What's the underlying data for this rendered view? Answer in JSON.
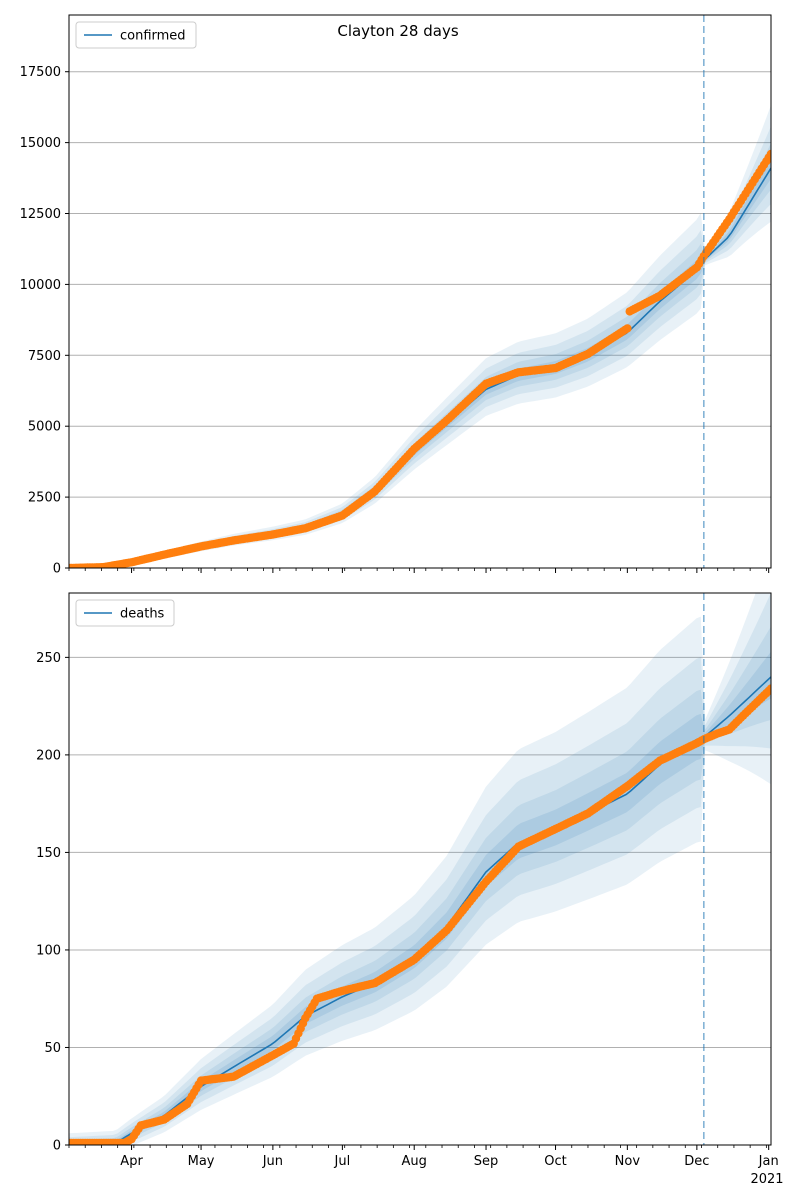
{
  "figure": {
    "title": "Clayton 28 days"
  },
  "colors": {
    "line": "#1f77b4",
    "points": "#ff7f0e",
    "band": "#1f77b4",
    "grid": "#b0b0b0",
    "cutoff": "#1f77b4"
  },
  "x_axis": {
    "ticks": [
      "Apr",
      "May",
      "Jun",
      "Jul",
      "Aug",
      "Sep",
      "Oct",
      "Nov",
      "Dec",
      "Jan"
    ],
    "year_label": "2021"
  },
  "chart_data": [
    {
      "type": "line",
      "x_domain": [
        "2020-03-05",
        "2021-01-02"
      ],
      "forecast_start": "2020-12-04",
      "legend": "confirmed",
      "legend_position": "upper left",
      "ylim": [
        0,
        19500
      ],
      "yticks": [
        "0",
        "2500",
        "5000",
        "7500",
        "10000",
        "12500",
        "15000",
        "17500"
      ],
      "ytick_values": [
        0,
        2500,
        5000,
        7500,
        10000,
        12500,
        15000,
        17500
      ],
      "grid": "y",
      "model_median": [
        [
          "2020-03-05",
          0
        ],
        [
          "2020-03-20",
          20
        ],
        [
          "2020-04-01",
          180
        ],
        [
          "2020-04-15",
          450
        ],
        [
          "2020-05-01",
          750
        ],
        [
          "2020-05-15",
          980
        ],
        [
          "2020-06-01",
          1200
        ],
        [
          "2020-06-15",
          1420
        ],
        [
          "2020-07-01",
          1900
        ],
        [
          "2020-07-15",
          2700
        ],
        [
          "2020-08-01",
          4100
        ],
        [
          "2020-08-15",
          5100
        ],
        [
          "2020-09-01",
          6300
        ],
        [
          "2020-09-15",
          6800
        ],
        [
          "2020-10-01",
          7050
        ],
        [
          "2020-10-15",
          7500
        ],
        [
          "2020-11-01",
          8300
        ],
        [
          "2020-11-15",
          9400
        ],
        [
          "2020-12-01",
          10500
        ],
        [
          "2020-12-04",
          10850
        ],
        [
          "2020-12-15",
          11700
        ],
        [
          "2021-01-02",
          14100
        ]
      ],
      "observed": [
        [
          "2020-03-05",
          0
        ],
        [
          "2020-03-20",
          30
        ],
        [
          "2020-04-01",
          200
        ],
        [
          "2020-04-15",
          470
        ],
        [
          "2020-05-01",
          760
        ],
        [
          "2020-05-15",
          970
        ],
        [
          "2020-06-01",
          1180
        ],
        [
          "2020-06-15",
          1400
        ],
        [
          "2020-07-01",
          1850
        ],
        [
          "2020-07-15",
          2700
        ],
        [
          "2020-08-01",
          4200
        ],
        [
          "2020-08-15",
          5200
        ],
        [
          "2020-09-01",
          6500
        ],
        [
          "2020-09-15",
          6900
        ],
        [
          "2020-10-01",
          7050
        ],
        [
          "2020-10-15",
          7550
        ],
        [
          "2020-11-01",
          8450
        ],
        [
          "2020-11-02",
          9050
        ],
        [
          "2020-11-15",
          9600
        ],
        [
          "2020-12-01",
          10600
        ],
        [
          "2020-12-04",
          11000
        ],
        [
          "2020-12-15",
          12300
        ],
        [
          "2021-01-02",
          14600
        ]
      ]
    },
    {
      "type": "line",
      "x_domain": [
        "2020-03-05",
        "2021-01-02"
      ],
      "forecast_start": "2020-12-04",
      "legend": "deaths",
      "legend_position": "upper left",
      "ylim": [
        0,
        283
      ],
      "yticks": [
        "0",
        "50",
        "100",
        "150",
        "200",
        "250"
      ],
      "ytick_values": [
        0,
        50,
        100,
        150,
        200,
        250
      ],
      "grid": "y",
      "model_median": [
        [
          "2020-03-05",
          0
        ],
        [
          "2020-03-25",
          1
        ],
        [
          "2020-04-01",
          6
        ],
        [
          "2020-04-15",
          15
        ],
        [
          "2020-05-01",
          30
        ],
        [
          "2020-05-15",
          40
        ],
        [
          "2020-06-01",
          52
        ],
        [
          "2020-06-15",
          66
        ],
        [
          "2020-07-01",
          76
        ],
        [
          "2020-07-15",
          83
        ],
        [
          "2020-08-01",
          96
        ],
        [
          "2020-08-15",
          112
        ],
        [
          "2020-09-01",
          140
        ],
        [
          "2020-09-15",
          155
        ],
        [
          "2020-10-01",
          162
        ],
        [
          "2020-10-15",
          170
        ],
        [
          "2020-11-01",
          180
        ],
        [
          "2020-11-15",
          195
        ],
        [
          "2020-12-01",
          208
        ],
        [
          "2020-12-04",
          209
        ],
        [
          "2020-12-15",
          220
        ],
        [
          "2021-01-02",
          240
        ]
      ],
      "observed": [
        [
          "2020-03-05",
          1
        ],
        [
          "2020-03-29",
          1
        ],
        [
          "2020-04-01",
          3
        ],
        [
          "2020-04-05",
          10
        ],
        [
          "2020-04-15",
          13
        ],
        [
          "2020-04-25",
          21
        ],
        [
          "2020-05-01",
          33
        ],
        [
          "2020-05-15",
          35
        ],
        [
          "2020-06-01",
          46
        ],
        [
          "2020-06-10",
          52
        ],
        [
          "2020-06-15",
          65
        ],
        [
          "2020-06-20",
          75
        ],
        [
          "2020-07-01",
          79
        ],
        [
          "2020-07-15",
          83
        ],
        [
          "2020-08-01",
          95
        ],
        [
          "2020-08-15",
          110
        ],
        [
          "2020-09-01",
          135
        ],
        [
          "2020-09-15",
          153
        ],
        [
          "2020-10-01",
          162
        ],
        [
          "2020-10-15",
          170
        ],
        [
          "2020-11-01",
          184
        ],
        [
          "2020-11-15",
          197
        ],
        [
          "2020-12-01",
          206
        ],
        [
          "2020-12-04",
          208
        ],
        [
          "2020-12-10",
          211
        ],
        [
          "2020-12-15",
          213
        ],
        [
          "2020-12-20",
          219
        ],
        [
          "2021-01-02",
          234
        ]
      ]
    }
  ]
}
